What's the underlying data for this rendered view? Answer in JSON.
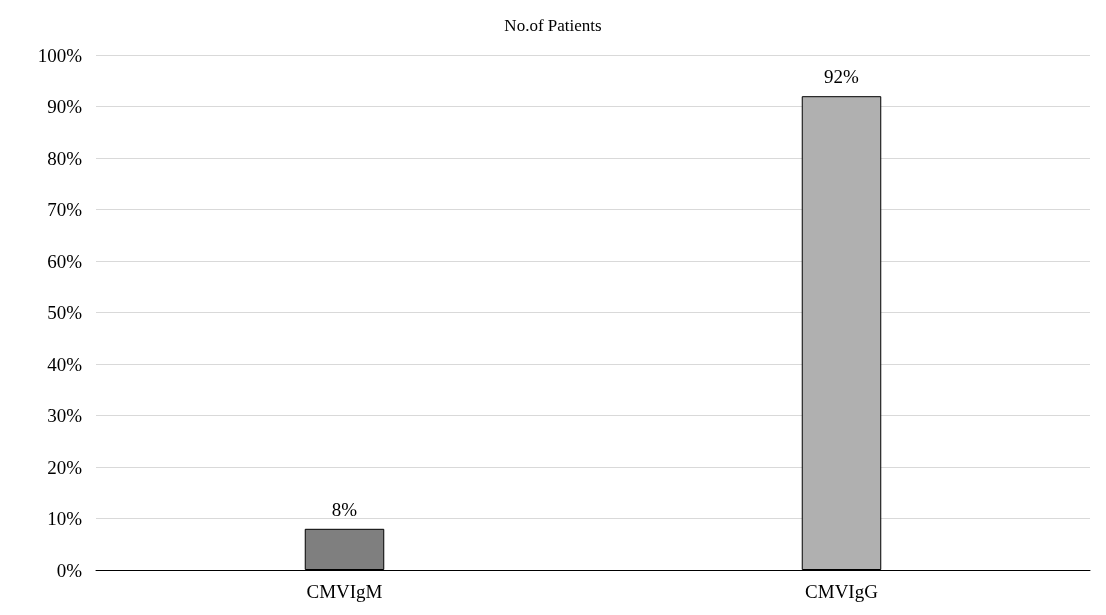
{
  "chart_data": {
    "type": "bar",
    "title": "No.of Patients",
    "categories": [
      "CMVIgM",
      "CMVIgG"
    ],
    "values": [
      8,
      92
    ],
    "colors": [
      "#7f7f7f",
      "#b0b0b0"
    ],
    "value_labels": [
      "8%",
      "92%"
    ],
    "ylim": [
      0,
      100
    ],
    "yticks": [
      {
        "value": 0,
        "label": "0%"
      },
      {
        "value": 10,
        "label": "10%"
      },
      {
        "value": 20,
        "label": "20%"
      },
      {
        "value": 30,
        "label": "30%"
      },
      {
        "value": 40,
        "label": "40%"
      },
      {
        "value": 50,
        "label": "50%"
      },
      {
        "value": 60,
        "label": "60%"
      },
      {
        "value": 70,
        "label": "70%"
      },
      {
        "value": 80,
        "label": "80%"
      },
      {
        "value": 90,
        "label": "90%"
      },
      {
        "value": 100,
        "label": "100%"
      }
    ],
    "grid": "y"
  }
}
